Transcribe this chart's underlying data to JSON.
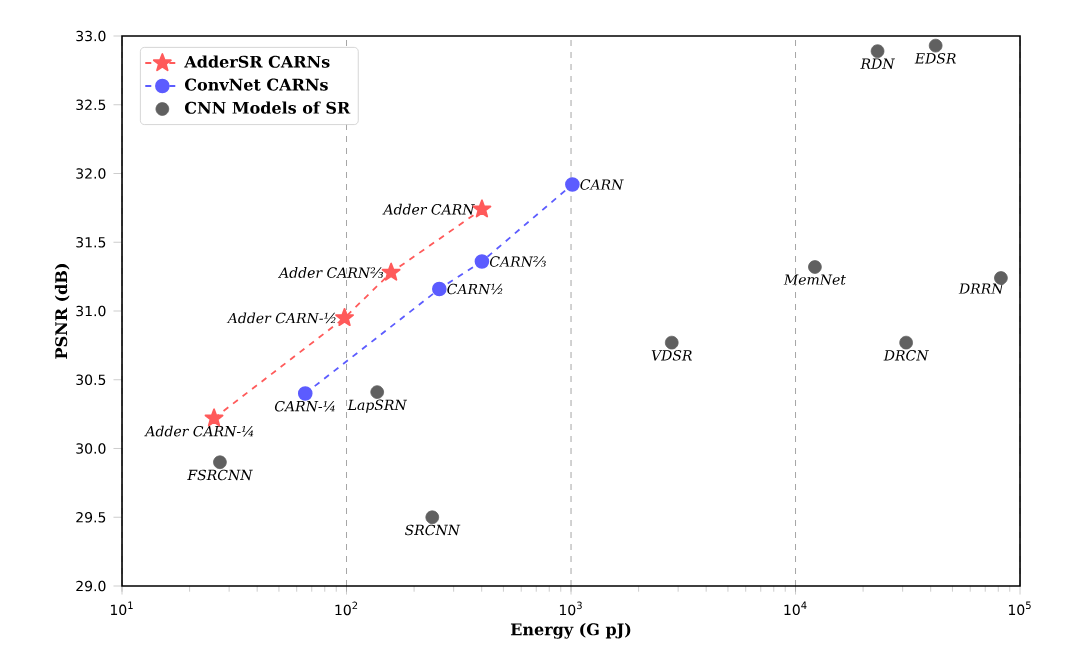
{
  "chart_data": {
    "type": "line",
    "xlabel": "Energy (G pJ)",
    "ylabel": "PSNR (dB)",
    "log": "x",
    "grid": "x",
    "legend": "top left",
    "xlim": [
      10,
      100000
    ],
    "xticks": [
      {
        "value": 10,
        "label": "10$^{1}$"
      },
      {
        "value": 100,
        "label": "10$^{2}$"
      },
      {
        "value": 1000,
        "label": "10$^{3}$"
      },
      {
        "value": 10000,
        "label": "10$^{4}$"
      },
      {
        "value": 100000,
        "label": "10$^{5}$"
      }
    ],
    "ylim": [
      29,
      33
    ],
    "yticks": [
      {
        "value": 29,
        "label": "29.0"
      },
      {
        "value": 29.5,
        "label": "29.5"
      },
      {
        "value": 30,
        "label": "30.0"
      },
      {
        "value": 30.5,
        "label": "30.5"
      },
      {
        "value": 31,
        "label": "31.0"
      },
      {
        "value": 31.5,
        "label": "31.5"
      },
      {
        "value": 32,
        "label": "32.0"
      },
      {
        "value": 32.5,
        "label": "32.5"
      },
      {
        "value": 33,
        "label": "33.0"
      }
    ],
    "series": [
      {
        "name": "AdderSR CARNs",
        "color": "#ff5a5a",
        "marker": "star",
        "line_style": "dashed",
        "x": [
          25.7,
          98,
          158,
          401
        ],
        "values": [
          30.22,
          30.95,
          31.28,
          31.74
        ]
      },
      {
        "name": "ConvNet CARNs",
        "color": "#5c5cff",
        "marker": "circle",
        "line_style": "dashed",
        "x": [
          65.5,
          259,
          401,
          1014
        ],
        "values": [
          30.4,
          31.16,
          31.36,
          31.92
        ]
      },
      {
        "name": "CNN Models of SR",
        "type": "scatter",
        "color": "#606060",
        "marker": "circle",
        "x": [
          27.3,
          137,
          241,
          2810,
          31100,
          23200,
          42100,
          12200,
          82200
        ],
        "values": [
          29.9,
          30.41,
          29.5,
          30.77,
          30.77,
          32.89,
          32.93,
          31.32,
          31.24
        ]
      }
    ],
    "annotations": [
      {
        "text": "Adder CARN-¼",
        "x": 25.7,
        "y": 30.22
      },
      {
        "text": "Adder CARN-½",
        "x": 98,
        "y": 30.95
      },
      {
        "text": "Adder CARN⅔",
        "x": 158,
        "y": 31.28
      },
      {
        "text": "Adder CARN",
        "x": 401,
        "y": 31.74
      },
      {
        "text": "CARN-¼",
        "x": 65.5,
        "y": 30.4
      },
      {
        "text": "CARN½",
        "x": 259,
        "y": 31.16
      },
      {
        "text": "CARN⅔",
        "x": 401,
        "y": 31.36
      },
      {
        "text": "CARN",
        "x": 1014,
        "y": 31.92
      },
      {
        "text": "FSRCNN",
        "x": 27.3,
        "y": 29.9
      },
      {
        "text": "LapSRN",
        "x": 137,
        "y": 30.41
      },
      {
        "text": "SRCNN",
        "x": 241,
        "y": 29.5
      },
      {
        "text": "VDSR",
        "x": 2810,
        "y": 30.77
      },
      {
        "text": "DRCN",
        "x": 31100,
        "y": 30.77
      },
      {
        "text": "RDN",
        "x": 23200,
        "y": 32.89
      },
      {
        "text": "EDSR",
        "x": 42100,
        "y": 32.93
      },
      {
        "text": "MemNet",
        "x": 12200,
        "y": 31.32
      },
      {
        "text": "DRRN",
        "x": 82200,
        "y": 31.24
      }
    ]
  }
}
